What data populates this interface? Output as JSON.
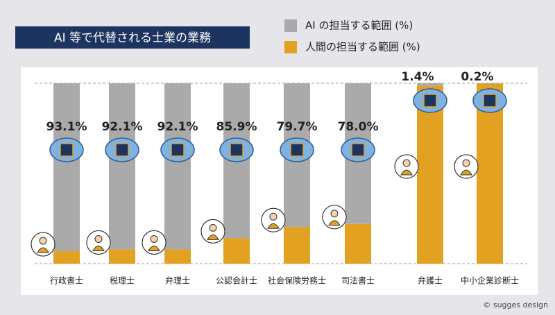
{
  "chart_data": {
    "type": "bar",
    "stacked": true,
    "title": "AI 等で代替される士業の業務",
    "categories": [
      "行政書士",
      "税理士",
      "弁理士",
      "公認会計士",
      "社会保険労務士",
      "司法書士",
      "弁護士",
      "中小企業診断士"
    ],
    "series": [
      {
        "name": "AI の担当する範囲 (%)",
        "color": "#aaaaaa",
        "values": [
          93.1,
          92.1,
          92.1,
          85.9,
          79.7,
          78.0,
          1.4,
          0.2
        ],
        "value_labels": [
          "93.1%",
          "92.1%",
          "92.1%",
          "85.9%",
          "79.7%",
          "78.0%",
          "1.4%",
          "0.2%"
        ]
      },
      {
        "name": "人間の担当する範囲 (%)",
        "color": "#e3a122",
        "values": [
          6.9,
          7.9,
          7.9,
          14.1,
          20.3,
          22.0,
          98.6,
          99.8
        ]
      }
    ],
    "ylim": [
      0,
      100
    ],
    "footer": "© sugges design"
  }
}
